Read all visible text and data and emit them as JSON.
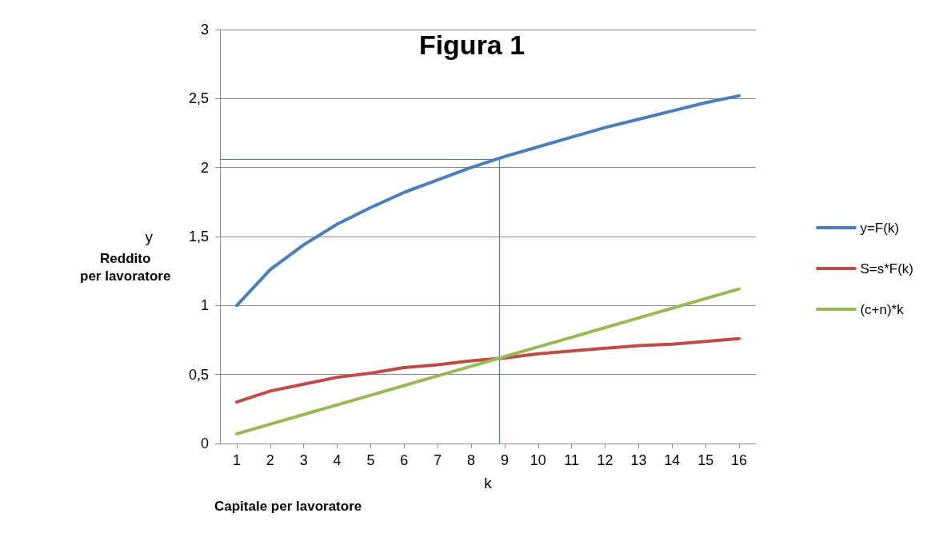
{
  "chart_data": {
    "type": "line",
    "title": "Figura 1",
    "xlabel": "k",
    "ylabel": "y",
    "annotations": [
      "Reddito\nper lavoratore",
      "Capitale per lavoratore"
    ],
    "x": [
      1,
      2,
      3,
      4,
      5,
      6,
      7,
      8,
      9,
      10,
      11,
      12,
      13,
      14,
      15,
      16
    ],
    "series": [
      {
        "name": "y=F(k)",
        "color": "#4a7ebb",
        "values": [
          1,
          1.26,
          1.44,
          1.59,
          1.71,
          1.82,
          1.91,
          2,
          2.08,
          2.15,
          2.22,
          2.29,
          2.35,
          2.41,
          2.47,
          2.52
        ]
      },
      {
        "name": "S=s*F(k)",
        "color": "#be4b48",
        "values": [
          0.3,
          0.38,
          0.43,
          0.48,
          0.51,
          0.55,
          0.57,
          0.6,
          0.62,
          0.65,
          0.67,
          0.69,
          0.71,
          0.72,
          0.74,
          0.76
        ]
      },
      {
        "name": "(c+n)*k",
        "color": "#98b954",
        "values": [
          0.07,
          0.14,
          0.21,
          0.28,
          0.35,
          0.42,
          0.49,
          0.56,
          0.63,
          0.7,
          0.77,
          0.84,
          0.91,
          0.98,
          1.05,
          1.12
        ]
      }
    ],
    "xlim": [
      0.5,
      16.5
    ],
    "xticks": [
      1,
      2,
      3,
      4,
      5,
      6,
      7,
      8,
      9,
      10,
      11,
      12,
      13,
      14,
      15,
      16
    ],
    "ylim": [
      0,
      3
    ],
    "yticks": [
      0,
      {
        "value": 0.5,
        "label": "0,5"
      },
      1,
      {
        "value": 1.5,
        "label": "1,5"
      },
      2,
      {
        "value": 2.5,
        "label": "2,5"
      },
      3
    ],
    "ref_lines": [
      {
        "axis": "x",
        "value": 8.85,
        "color": "#4a7ebb"
      },
      {
        "axis": "y",
        "value": 2.06,
        "color": "#4a7ebb"
      }
    ],
    "grid": "y",
    "legend": "right",
    "marker": "none",
    "line_style": "solid"
  }
}
